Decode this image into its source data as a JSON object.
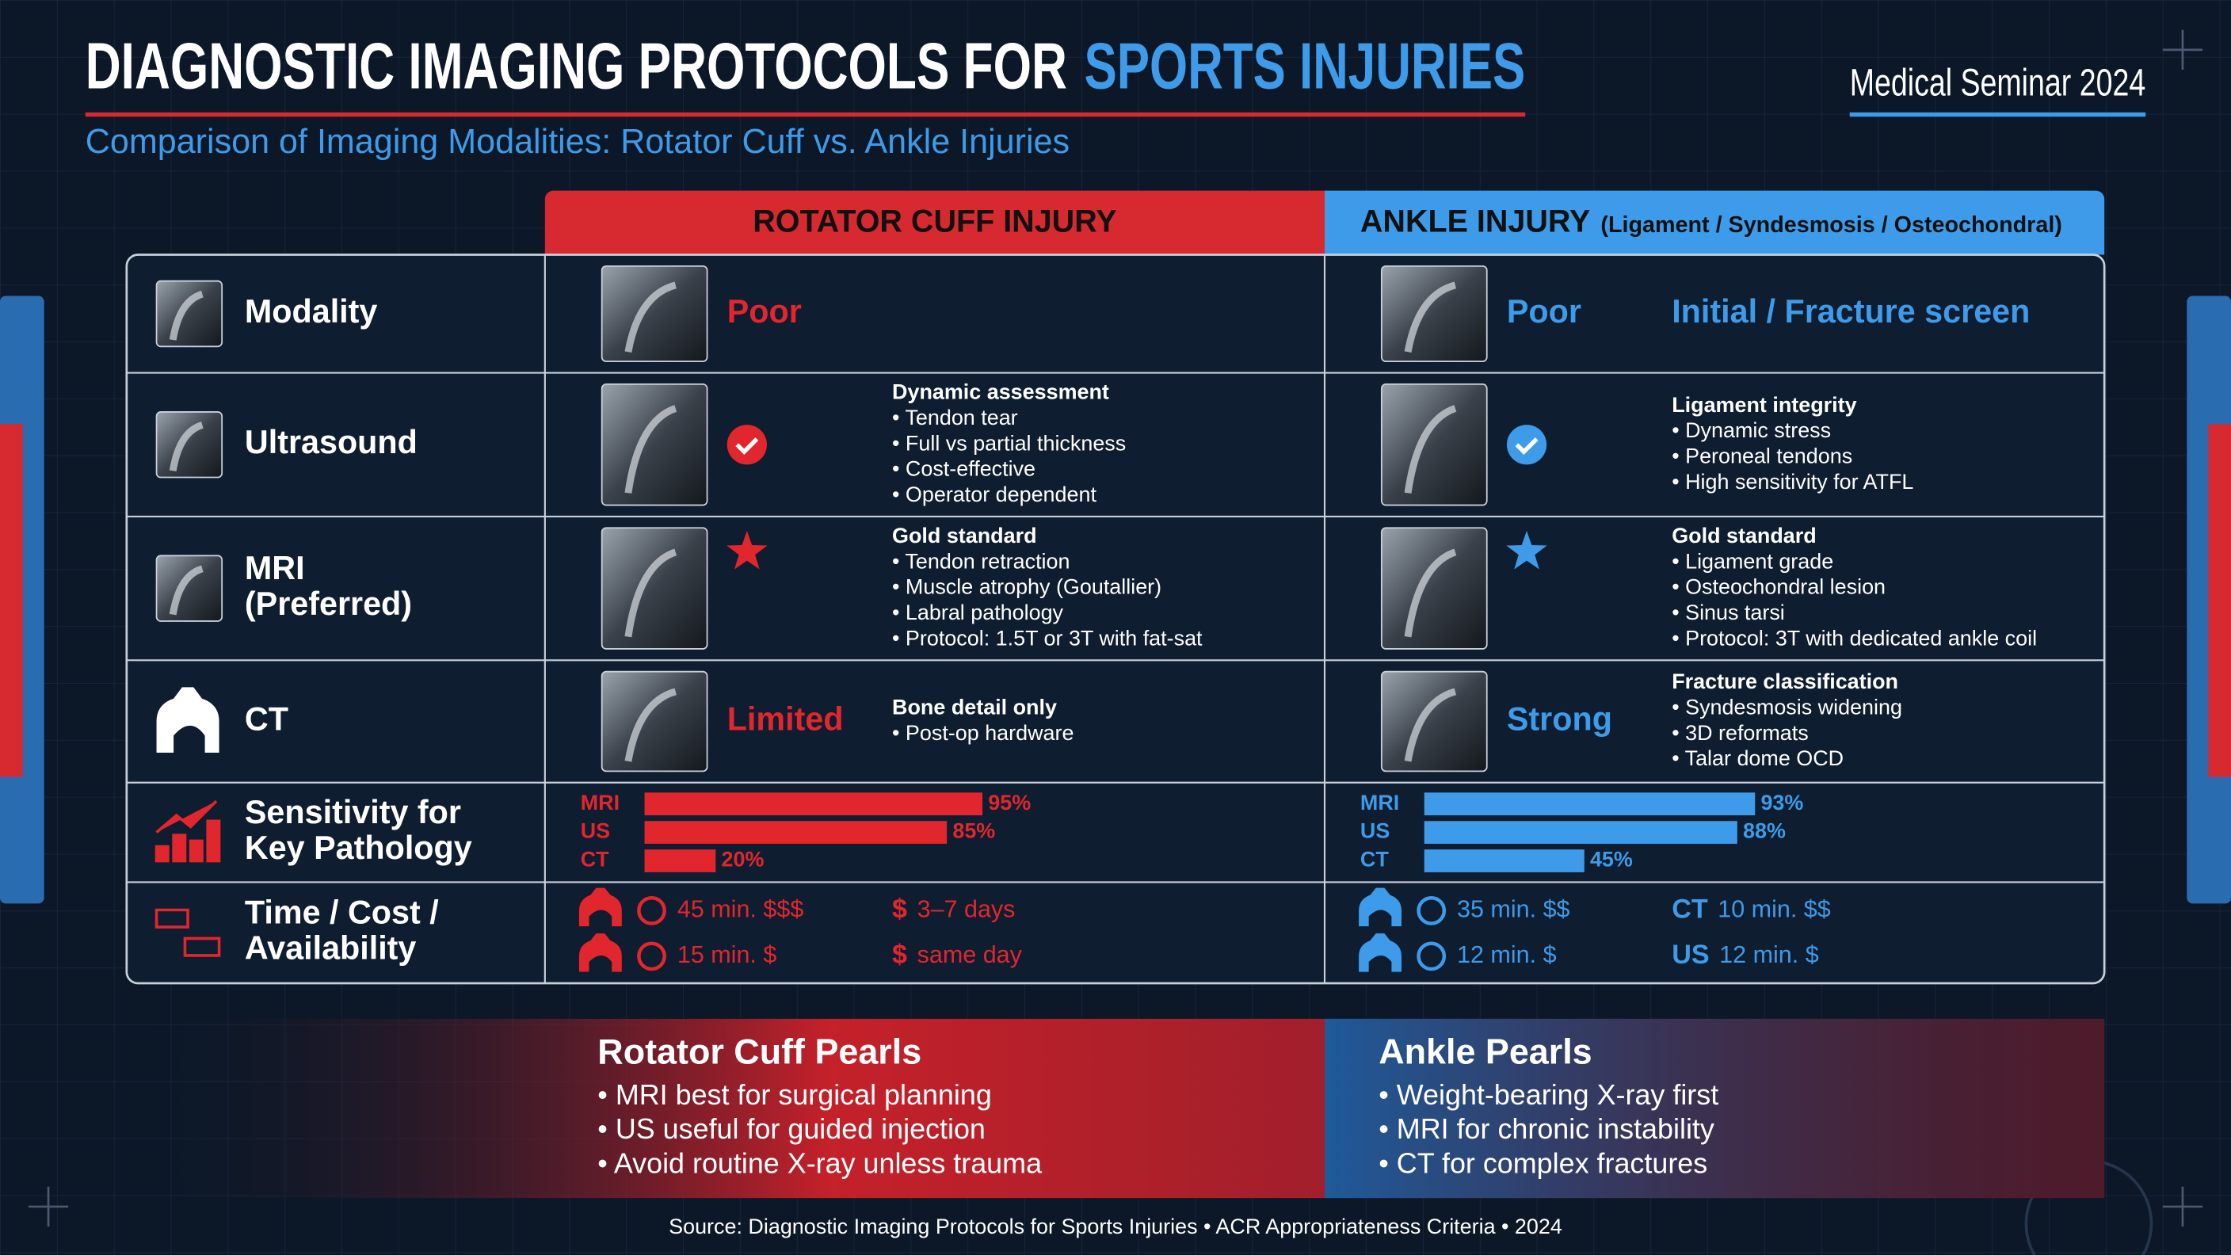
{
  "header": {
    "title": "DIAGNOSTIC IMAGING PROTOCOLS FOR",
    "title_highlight": "SPORTS INJURIES",
    "subtitle": "Comparison of Imaging Modalities: Rotator Cuff vs. Ankle Injuries",
    "badge": "Medical Seminar 2024"
  },
  "columns": {
    "rotator": {
      "title": "ROTATOR CUFF INJURY",
      "color": "#e2262d"
    },
    "ankle": {
      "title": "ANKLE INJURY",
      "note": "(Ligament / Syndesmosis / Osteochondral)",
      "color": "#3d9be9"
    }
  },
  "rows": [
    {
      "label": [
        "Modality"
      ],
      "rotator": {
        "rating": "Poor"
      },
      "ankle": {
        "rating": "Poor",
        "note": "Initial / Fracture screen"
      }
    },
    {
      "label": [
        "Ultrasound"
      ],
      "rotator": {
        "heading": "Dynamic assessment",
        "bullets": [
          "• Tendon tear",
          "• Full vs partial thickness",
          "• Cost-effective",
          "• Operator dependent"
        ]
      },
      "ankle": {
        "heading": "Ligament integrity",
        "bullets": [
          "• Dynamic stress",
          "• Peroneal tendons",
          "• High sensitivity for ATFL"
        ]
      }
    },
    {
      "label": [
        "MRI",
        "(Preferred)"
      ],
      "rotator": {
        "heading": "Gold standard",
        "bullets": [
          "• Tendon retraction",
          "• Muscle atrophy (Goutallier)",
          "• Labral pathology",
          "• Protocol: 1.5T or 3T with fat-sat"
        ]
      },
      "ankle": {
        "heading": "Gold standard",
        "bullets": [
          "• Ligament grade",
          "• Osteochondral lesion",
          "• Sinus tarsi",
          "• Protocol: 3T with dedicated ankle coil"
        ]
      }
    },
    {
      "label": [
        "CT"
      ],
      "rotator": {
        "rating": "Limited",
        "heading": "Bone detail only",
        "bullets": [
          "• Post-op hardware"
        ]
      },
      "ankle": {
        "rating": "Strong",
        "heading": "Fracture classification",
        "bullets": [
          "• Syndesmosis widening",
          "• 3D reformats",
          "• Talar dome OCD"
        ]
      }
    },
    {
      "label": [
        "Sensitivity for",
        "Key Pathology"
      ],
      "rotator": {
        "modalities": [
          "MRI",
          "US",
          "CT"
        ],
        "values": [
          95,
          85,
          20
        ],
        "value_labels": [
          "95%",
          "85%",
          "20%"
        ]
      },
      "ankle": {
        "modalities": [
          "MRI",
          "US",
          "CT"
        ],
        "values": [
          93,
          88,
          45
        ],
        "value_labels": [
          "93%",
          "88%",
          "45%"
        ]
      }
    },
    {
      "label": [
        "Time / Cost /",
        "Availability"
      ],
      "rotator": {
        "items": [
          {
            "text": "45 min. $$$"
          },
          {
            "prefix": "$",
            "text": "3–7 days"
          },
          {
            "text": "15 min. $"
          },
          {
            "prefix": "$",
            "text": "same day"
          }
        ]
      },
      "ankle": {
        "items": [
          {
            "text": "35 min. $$"
          },
          {
            "prefix": "CT",
            "text": "10 min. $$"
          },
          {
            "text": "12 min. $"
          },
          {
            "prefix": "US",
            "text": "12 min. $"
          }
        ]
      }
    }
  ],
  "pearls": {
    "rotator": {
      "title": "Rotator Cuff Pearls",
      "bullets": [
        "• MRI best for surgical planning",
        "• US useful for guided injection",
        "• Avoid routine X-ray unless trauma"
      ]
    },
    "ankle": {
      "title": "Ankle Pearls",
      "bullets": [
        "• Weight-bearing X-ray first",
        "• MRI for chronic instability",
        "• CT for complex fractures"
      ]
    }
  },
  "footer": "Source: Diagnostic Imaging Protocols for Sports Injuries • ACR Appropriateness Criteria • 2024"
}
